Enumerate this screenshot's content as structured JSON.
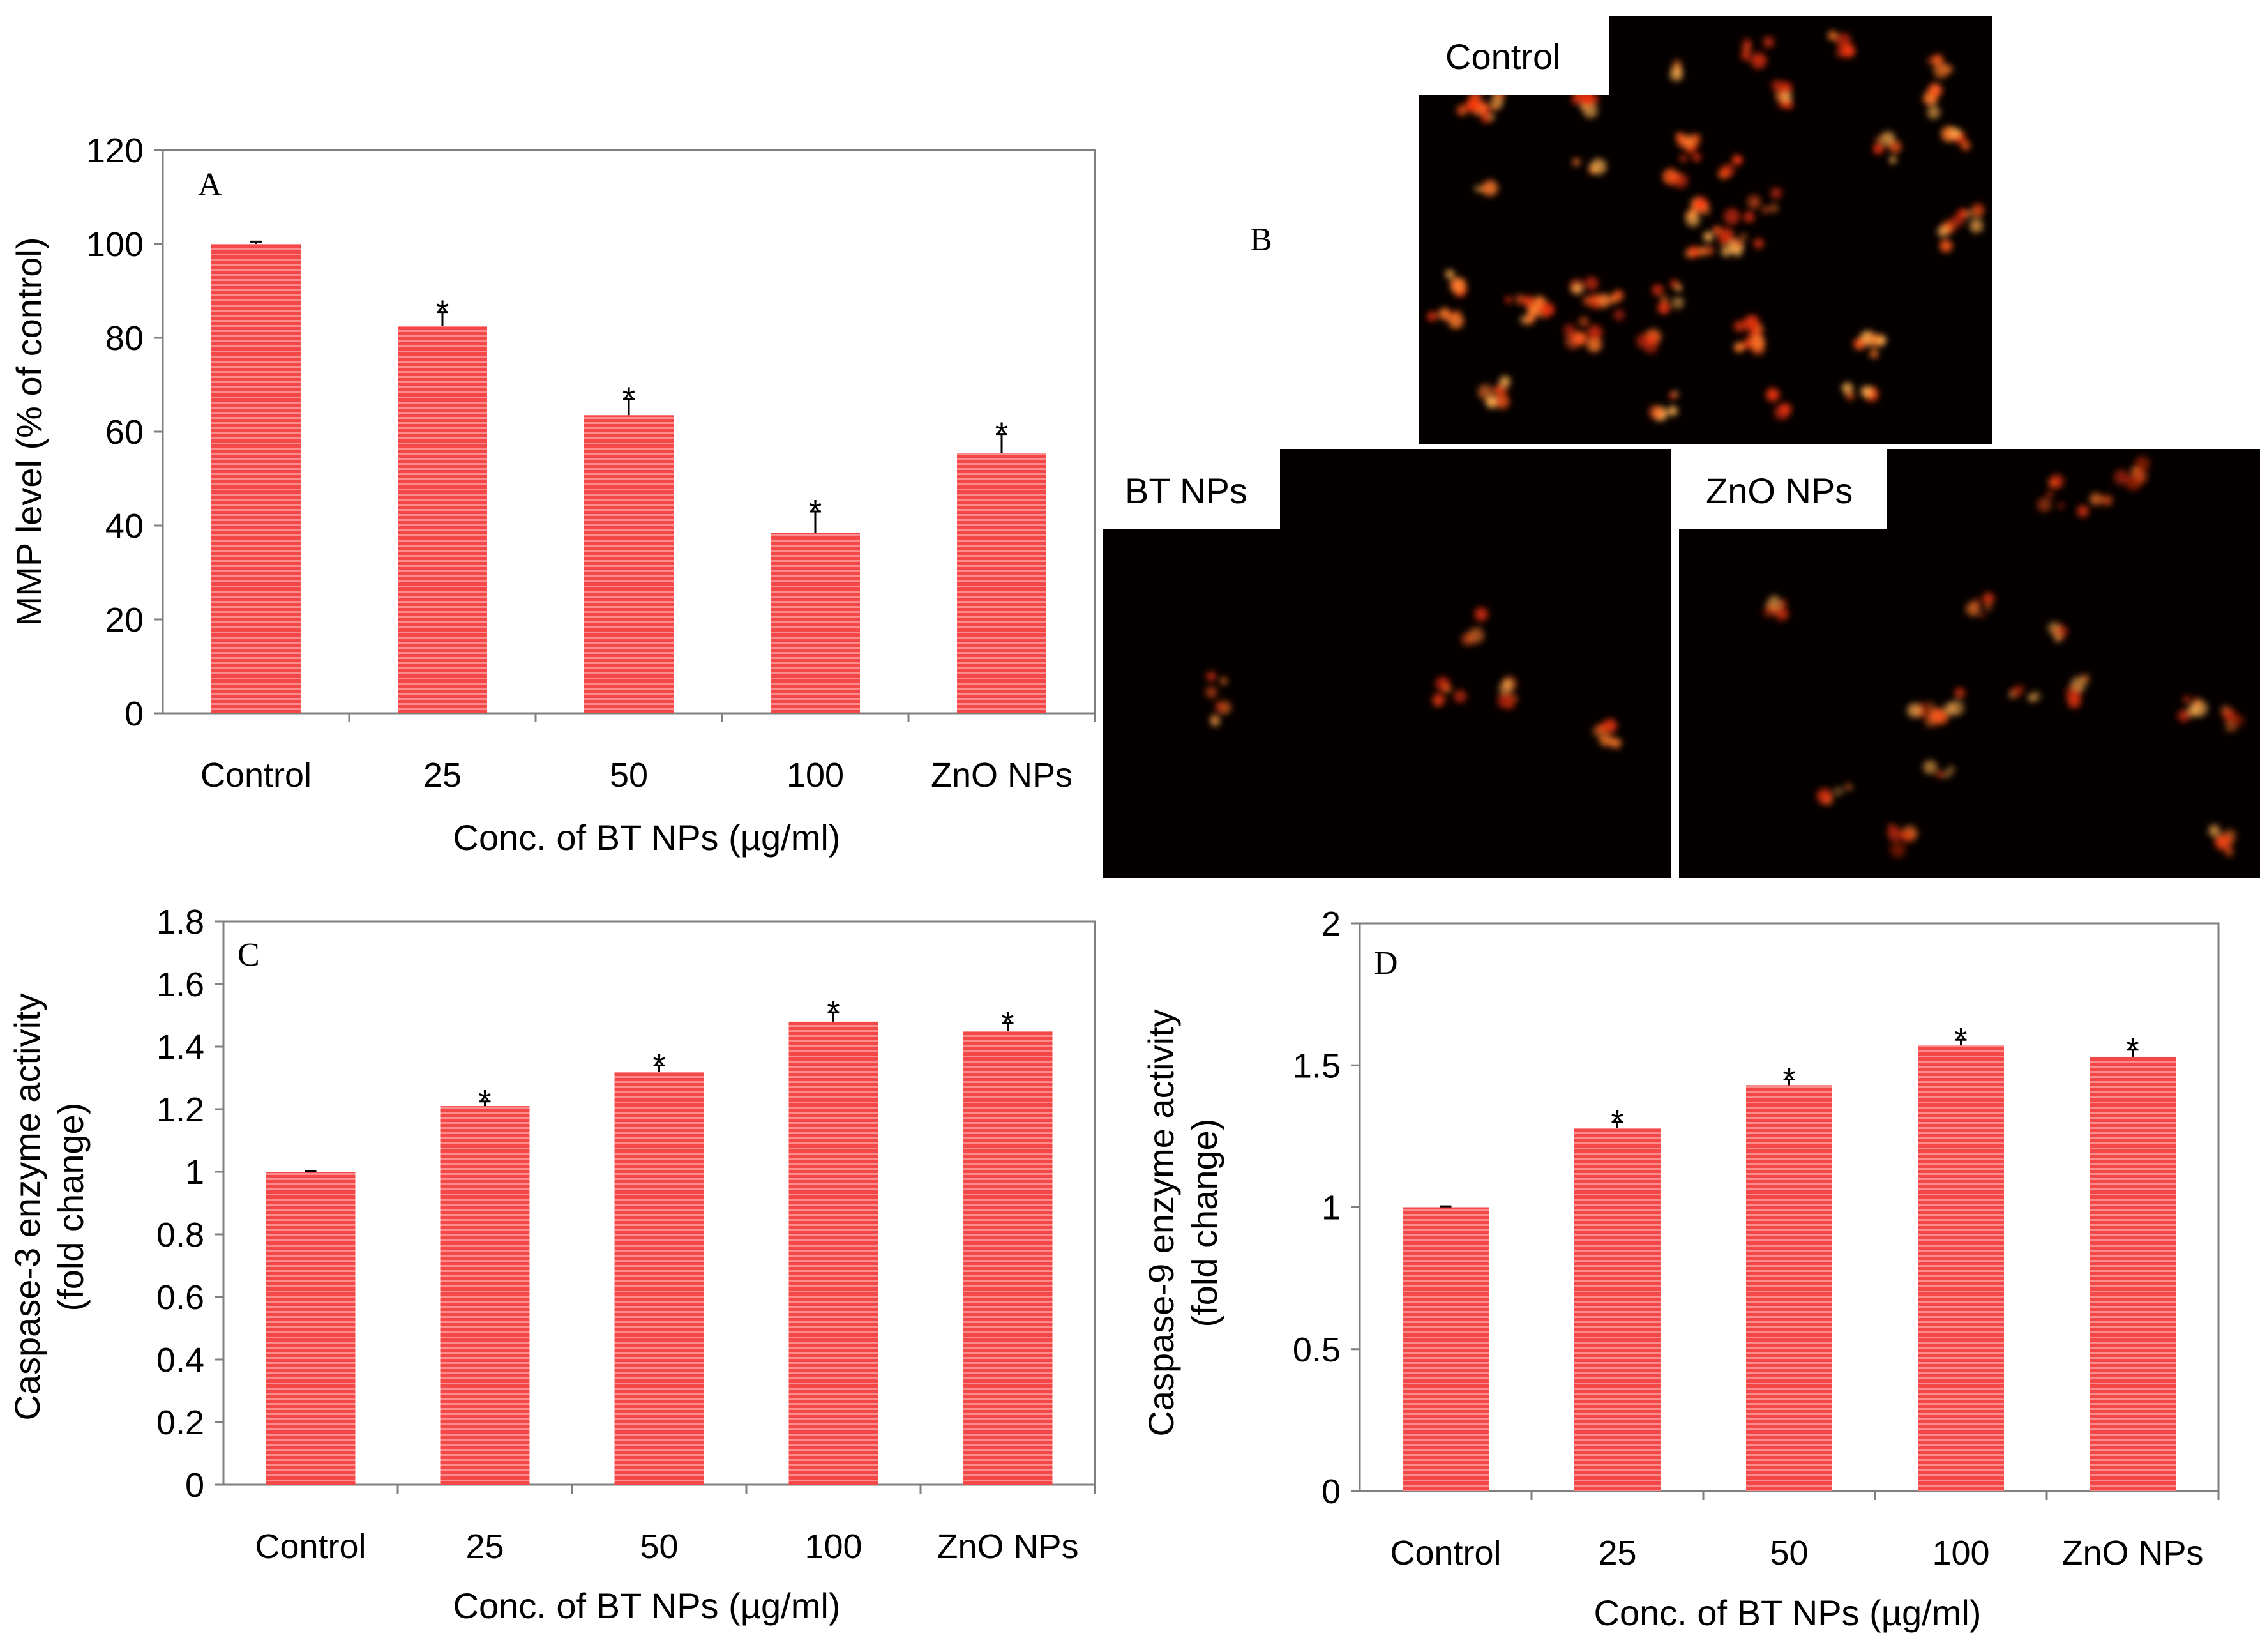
{
  "chart_data": [
    {
      "panel": "A",
      "type": "bar",
      "categories": [
        "Control",
        "25",
        "50",
        "100",
        "ZnO NPs"
      ],
      "values": [
        100,
        82.5,
        63.5,
        38.5,
        55.5
      ],
      "errors": [
        0.5,
        3,
        3.5,
        4.5,
        4
      ],
      "significance": [
        "",
        "*",
        "*",
        "*",
        "*"
      ],
      "xlabel": "Conc. of BT NPs (µg/ml)",
      "ylabel": "MMP level (% of control)",
      "ylim": [
        0,
        120
      ],
      "yticks": [
        "0",
        "20",
        "40",
        "60",
        "80",
        "100",
        "120"
      ],
      "color": "#f03a3a"
    },
    {
      "panel": "C",
      "type": "bar",
      "categories": [
        "Control",
        "25",
        "50",
        "100",
        "ZnO NPs"
      ],
      "values": [
        1.0,
        1.21,
        1.32,
        1.48,
        1.45
      ],
      "errors": [
        0.003,
        0.015,
        0.02,
        0.03,
        0.025
      ],
      "significance": [
        "",
        "*",
        "*",
        "*",
        "*"
      ],
      "xlabel": "Conc. of BT NPs (µg/ml)",
      "ylabel_lines": [
        "Caspase-3 enzyme activity",
        "(fold change)"
      ],
      "ylim": [
        0,
        1.8
      ],
      "yticks": [
        "0",
        "0.2",
        "0.4",
        "0.6",
        "0.8",
        "1",
        "1.2",
        "1.4",
        "1.6",
        "1.8"
      ],
      "color": "#f03a3a"
    },
    {
      "panel": "D",
      "type": "bar",
      "categories": [
        "Control",
        "25",
        "50",
        "100",
        "ZnO NPs"
      ],
      "values": [
        1.0,
        1.28,
        1.43,
        1.57,
        1.53
      ],
      "errors": [
        0.003,
        0.02,
        0.02,
        0.02,
        0.025
      ],
      "significance": [
        "",
        "*",
        "*",
        "*",
        "*"
      ],
      "xlabel": "Conc. of BT NPs (µg/ml)",
      "ylabel_lines": [
        "Caspase-9 enzyme activity",
        "(fold change)"
      ],
      "ylim": [
        0,
        2
      ],
      "yticks": [
        "0",
        "0.5",
        "1",
        "1.5",
        "2"
      ],
      "color": "#f03a3a"
    }
  ],
  "panel_b": {
    "letter": "B",
    "images": [
      {
        "label": "Control",
        "intensity": "high"
      },
      {
        "label": "BT NPs",
        "intensity": "low"
      },
      {
        "label": "ZnO NPs",
        "intensity": "medium"
      }
    ]
  }
}
